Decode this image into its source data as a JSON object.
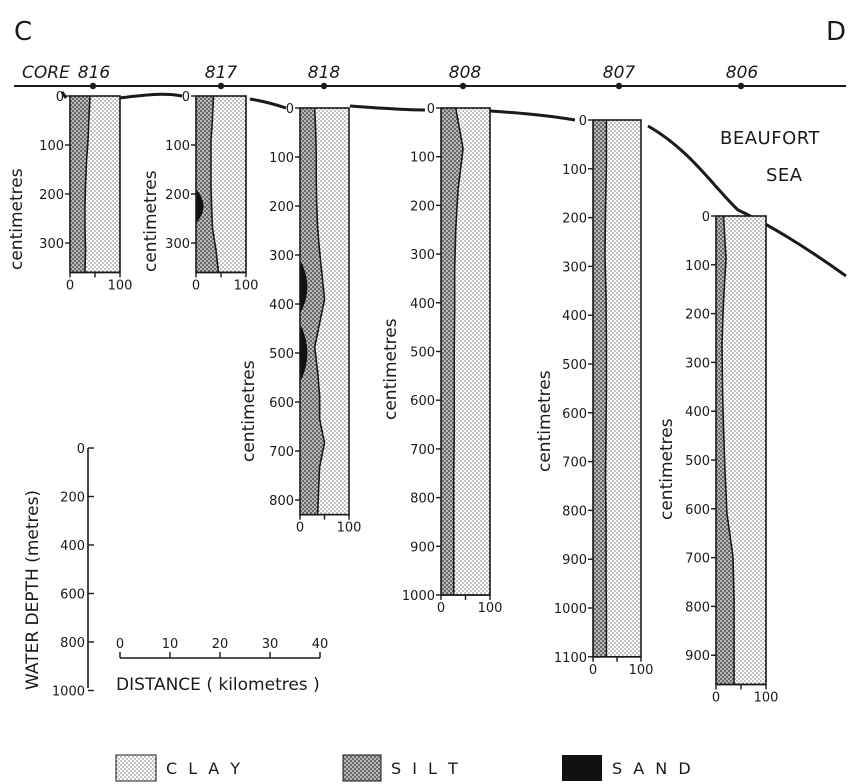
{
  "corner_left": "C",
  "corner_right": "D",
  "core_label": "CORE",
  "sea_label_line1": "BEAUFORT",
  "sea_label_line2": "SEA",
  "depth_unit_label": "centimetres",
  "percent_ticks": [
    "0",
    "100"
  ],
  "cores": [
    {
      "id": "816",
      "depth_ticks": [
        0,
        100,
        200,
        300
      ],
      "silt_clay_boundary_pct": [
        40,
        38,
        36,
        33,
        31,
        30,
        30,
        31,
        30
      ],
      "max_depth_cm": 360
    },
    {
      "id": "817",
      "depth_ticks": [
        0,
        100,
        200,
        300
      ],
      "silt_clay_boundary_pct": [
        35,
        33,
        30,
        30,
        30,
        31,
        33,
        40,
        45
      ],
      "sand_lens_cm": [
        [
          190,
          260
        ]
      ],
      "max_depth_cm": 360
    },
    {
      "id": "818",
      "depth_ticks": [
        0,
        100,
        200,
        300,
        400,
        500,
        600,
        700,
        800
      ],
      "silt_clay_boundary_pct": [
        30,
        32,
        33,
        33,
        34,
        36,
        40,
        45,
        50,
        40,
        30,
        36,
        40,
        40,
        50,
        40,
        38,
        36
      ],
      "sand_lens_cm": [
        [
          310,
          420
        ],
        [
          440,
          560
        ]
      ],
      "max_depth_cm": 830
    },
    {
      "id": "808",
      "depth_ticks": [
        0,
        100,
        200,
        300,
        400,
        500,
        600,
        700,
        800,
        900,
        1000
      ],
      "silt_clay_boundary_pct": [
        30,
        45,
        35,
        30,
        28,
        28,
        27,
        27,
        27,
        26,
        26,
        26,
        26
      ],
      "max_depth_cm": 1000
    },
    {
      "id": "807",
      "depth_ticks": [
        0,
        100,
        200,
        300,
        400,
        500,
        600,
        700,
        800,
        900,
        1000,
        1100
      ],
      "silt_clay_boundary_pct": [
        28,
        28,
        26,
        25,
        27,
        28,
        28,
        27,
        26,
        27,
        27,
        28,
        28
      ],
      "max_depth_cm": 1100
    },
    {
      "id": "806",
      "depth_ticks": [
        0,
        100,
        200,
        300,
        400,
        500,
        600,
        700,
        800,
        900
      ],
      "silt_clay_boundary_pct": [
        15,
        20,
        15,
        12,
        13,
        15,
        18,
        22,
        34,
        36,
        36,
        36
      ],
      "max_depth_cm": 960
    }
  ],
  "water_depth_axis": {
    "label": "WATER DEPTH (metres)",
    "ticks": [
      "0",
      "200",
      "400",
      "600",
      "800",
      "1000"
    ]
  },
  "distance_axis": {
    "label": "DISTANCE ( kilometres )",
    "ticks": [
      "0",
      "10",
      "20",
      "30",
      "40"
    ]
  },
  "legend": [
    {
      "key": "clay",
      "label": "C L A Y"
    },
    {
      "key": "silt",
      "label": "S I L T"
    },
    {
      "key": "sand",
      "label": "S A N D"
    }
  ]
}
